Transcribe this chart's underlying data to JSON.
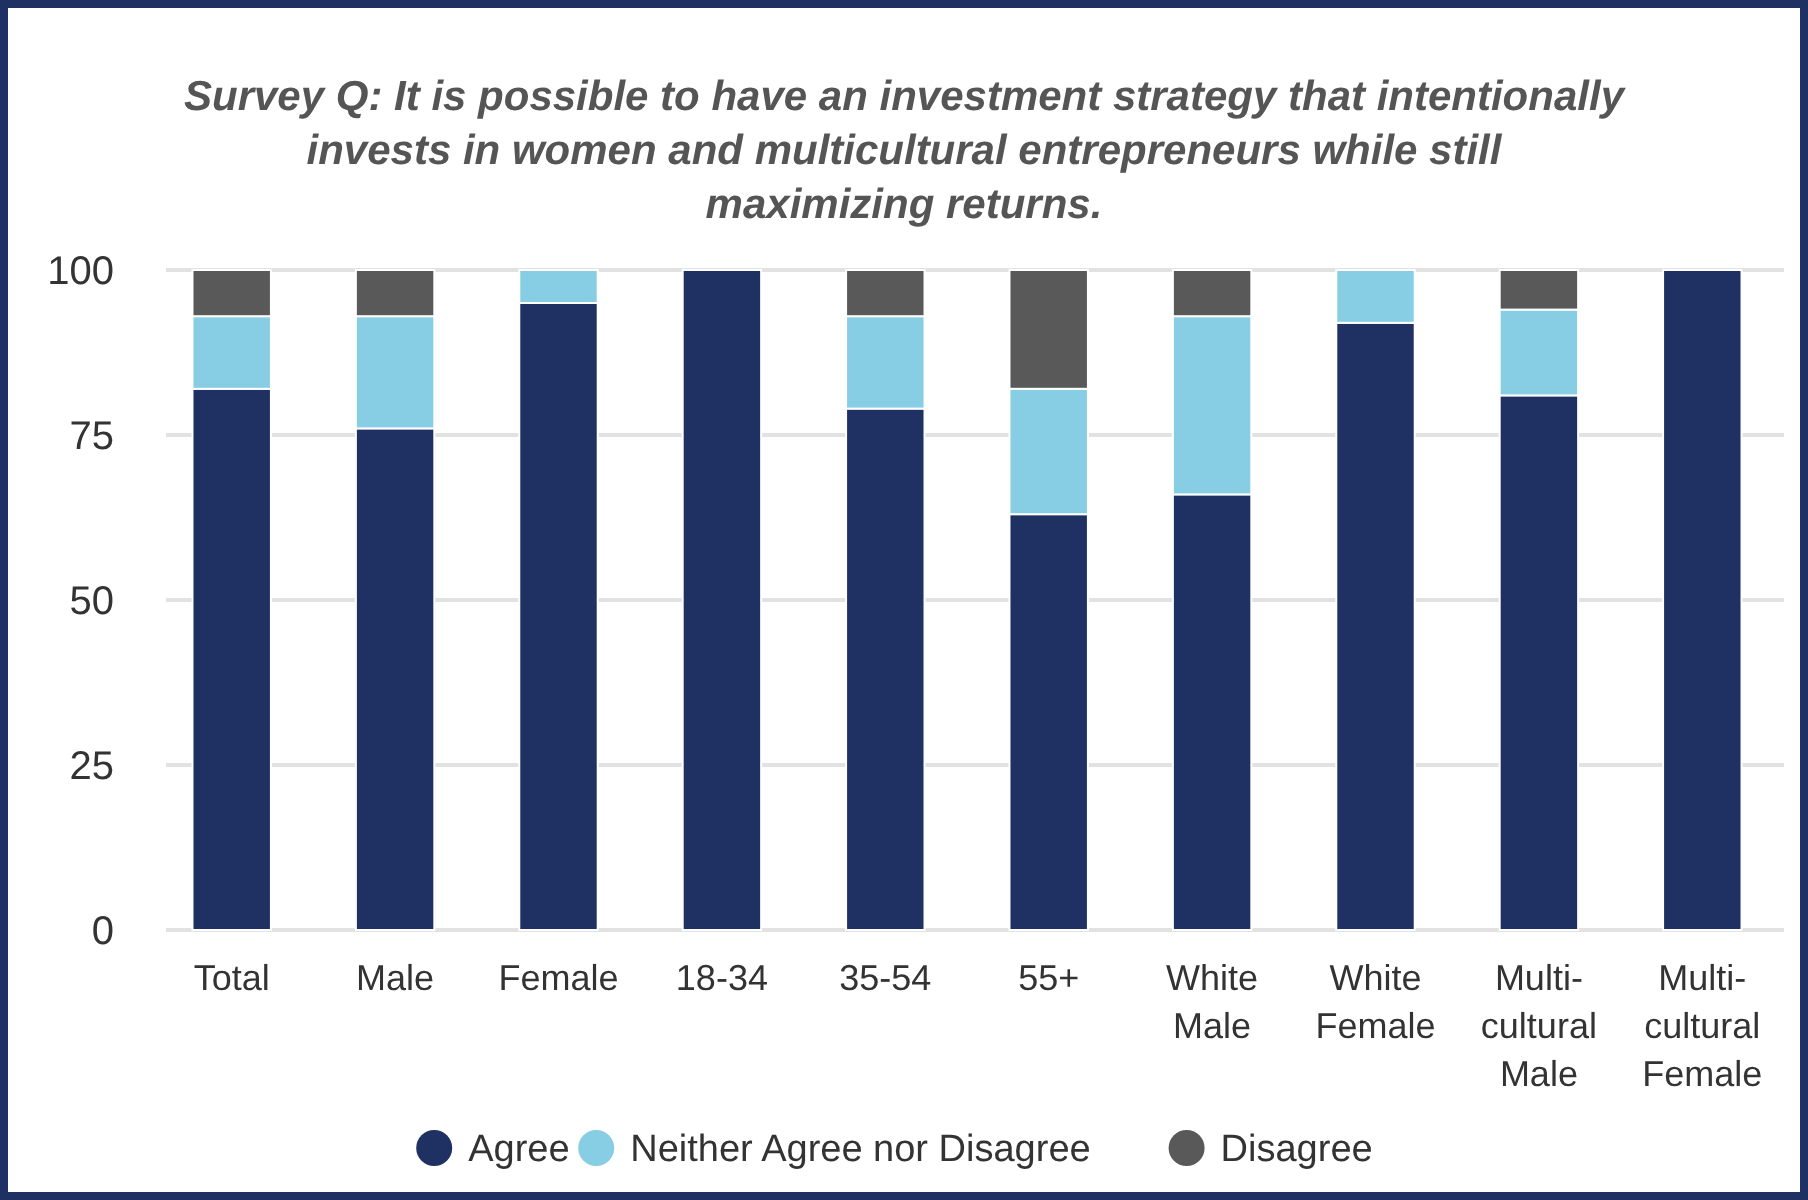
{
  "chart_data": {
    "type": "bar",
    "stacked": true,
    "title": "Survey Q: It is possible to have an investment strategy that intentionally\ninvests in women and multicultural entrepreneurs while still\nmaximizing returns.",
    "categories": [
      "Total",
      "Male",
      "Female",
      "18-34",
      "35-54",
      "55+",
      "White\nMale",
      "White\nFemale",
      "Multi-\ncultural\nMale",
      "Multi-\ncultural\nFemale"
    ],
    "series": [
      {
        "name": "Agree",
        "color": "#1f3162",
        "values": [
          82,
          76,
          95,
          100,
          79,
          63,
          66,
          92,
          81,
          100
        ]
      },
      {
        "name": "Neither Agree nor Disagree",
        "color": "#87cde3",
        "values": [
          11,
          17,
          5,
          0,
          14,
          19,
          27,
          8,
          13,
          0
        ]
      },
      {
        "name": "Disagree",
        "color": "#595959",
        "values": [
          7,
          7,
          0,
          0,
          7,
          18,
          7,
          0,
          6,
          0
        ]
      }
    ],
    "ylim": [
      0,
      100
    ],
    "yticks": [
      0,
      25,
      50,
      75,
      100
    ],
    "grid": "y",
    "legend": "bottom"
  }
}
